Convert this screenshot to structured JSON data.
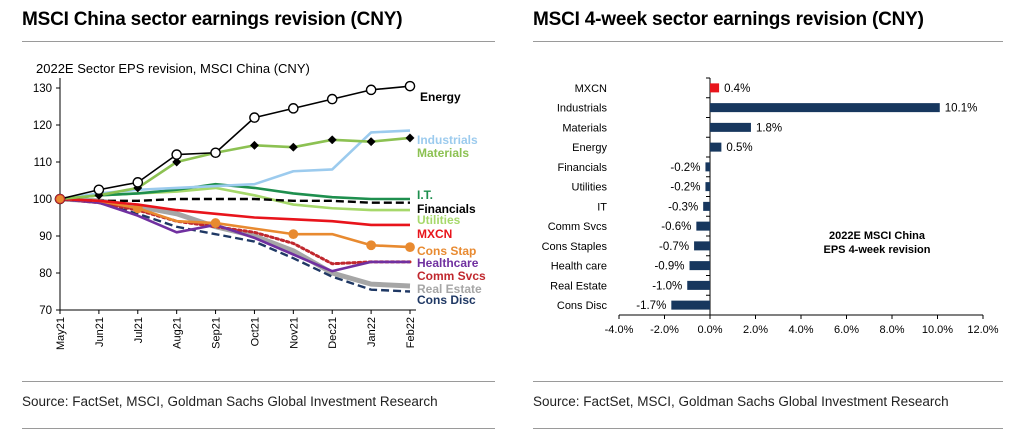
{
  "panels": {
    "left": {
      "title": "MSCI China sector earnings revision (CNY)",
      "source": "Source: FactSet, MSCI, Goldman Sachs Global Investment Research"
    },
    "right": {
      "title": "MSCI 4-week sector earnings revision (CNY)",
      "source": "Source: FactSet, MSCI, Goldman Sachs Global Investment Research"
    }
  },
  "chart_data": [
    {
      "type": "line",
      "title": "2022E Sector EPS revision, MSCI China (CNY)",
      "xlabel": "",
      "ylabel": "",
      "x": [
        "May21",
        "Jun21",
        "Jul21",
        "Aug21",
        "Sep21",
        "Oct21",
        "Nov21",
        "Dec21",
        "Jan22",
        "Feb22"
      ],
      "ylim": [
        70,
        130
      ],
      "yticks": [
        70,
        80,
        90,
        100,
        110,
        120,
        130
      ],
      "grid": false,
      "legend": "inline-right",
      "series": [
        {
          "name": "Energy",
          "color": "#000000",
          "style": "solid-circles",
          "values": [
            100,
            102.5,
            104.5,
            112,
            112.5,
            122,
            124.5,
            127,
            129.5,
            130.5
          ]
        },
        {
          "name": "Industrials",
          "color": "#9ccbee",
          "style": "solid",
          "values": [
            100,
            101.5,
            102.5,
            103,
            103.5,
            104,
            107.5,
            108,
            118,
            118.5
          ]
        },
        {
          "name": "Materials",
          "color": "#8cc152",
          "style": "solid-diamonds",
          "values": [
            100,
            101,
            103,
            110,
            112.5,
            114.5,
            114,
            116,
            115.5,
            116.5
          ]
        },
        {
          "name": "I.T.",
          "color": "#1e8f4e",
          "style": "solid",
          "values": [
            100,
            101,
            101.5,
            102.5,
            104,
            103,
            101.5,
            100.5,
            100,
            100
          ]
        },
        {
          "name": "Financials",
          "color": "#000000",
          "style": "dashed",
          "values": [
            100,
            99.5,
            99.5,
            100,
            100,
            100,
            99.5,
            99.5,
            99,
            99
          ]
        },
        {
          "name": "Utilities",
          "color": "#a6d86a",
          "style": "solid",
          "values": [
            100,
            101,
            101.5,
            102,
            103,
            101,
            98.5,
            97.5,
            97,
            97
          ]
        },
        {
          "name": "MXCN",
          "color": "#e8141b",
          "style": "solid",
          "values": [
            100,
            99.5,
            98.5,
            97,
            96,
            95,
            94.5,
            94,
            93,
            93
          ]
        },
        {
          "name": "Cons Stap",
          "color": "#e88a30",
          "style": "solid-circles",
          "values": [
            100,
            99.5,
            97.5,
            94,
            93.5,
            92,
            90.5,
            90.5,
            87.5,
            87
          ]
        },
        {
          "name": "Healthcare",
          "color": "#7030a0",
          "style": "solid",
          "values": [
            100,
            99,
            95.5,
            91,
            93,
            89.5,
            85,
            80.5,
            83,
            83
          ]
        },
        {
          "name": "Comm Svcs",
          "color": "#c0282e",
          "style": "dotted",
          "values": [
            100,
            99,
            97,
            94,
            92.5,
            91,
            88,
            82.5,
            83,
            83
          ]
        },
        {
          "name": "Real Estate",
          "color": "#a6a6a6",
          "style": "thick",
          "values": [
            100,
            99.5,
            98,
            96,
            92.5,
            90,
            86,
            80,
            77,
            76.5
          ]
        },
        {
          "name": "Cons Disc",
          "color": "#1f3864",
          "style": "dashed",
          "values": [
            100,
            99,
            96,
            92.5,
            90.5,
            88.5,
            84,
            79,
            75.5,
            75
          ]
        }
      ]
    },
    {
      "type": "bar",
      "orientation": "horizontal",
      "title": "2022E MSCI China EPS 4-week revision",
      "xlabel": "",
      "ylabel": "",
      "categories": [
        "MXCN",
        "Industrials",
        "Materials",
        "Energy",
        "Financials",
        "Utilities",
        "IT",
        "Comm Svcs",
        "Cons Staples",
        "Health care",
        "Real Estate",
        "Cons Disc"
      ],
      "values": [
        0.4,
        10.1,
        1.8,
        0.5,
        -0.2,
        -0.2,
        -0.3,
        -0.6,
        -0.7,
        -0.9,
        -1.0,
        -1.7
      ],
      "labels": [
        "0.4%",
        "10.1%",
        "1.8%",
        "0.5%",
        "-0.2%",
        "-0.2%",
        "-0.3%",
        "-0.6%",
        "-0.7%",
        "-0.9%",
        "-1.0%",
        "-1.7%"
      ],
      "xlim": [
        -4,
        12
      ],
      "xticks": [
        "-4.0%",
        "-2.0%",
        "0.0%",
        "2.0%",
        "4.0%",
        "6.0%",
        "8.0%",
        "10.0%",
        "12.0%"
      ],
      "highlight": {
        "category": "MXCN",
        "color": "#e8141b"
      },
      "bar_color": "#17375e",
      "grid": false
    }
  ]
}
